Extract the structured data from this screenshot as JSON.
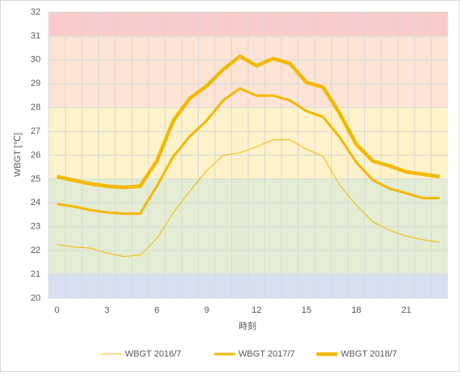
{
  "chart_data": {
    "type": "line",
    "y_label": "WBGT [℃]",
    "x_label": "時刻",
    "x": [
      0,
      1,
      2,
      3,
      4,
      5,
      6,
      7,
      8,
      9,
      10,
      11,
      12,
      13,
      14,
      15,
      16,
      17,
      18,
      19,
      20,
      21,
      22,
      23
    ],
    "xlim": [
      -0.5,
      23.5
    ],
    "xticks": [
      0,
      3,
      6,
      9,
      12,
      15,
      18,
      21
    ],
    "ylim": [
      20,
      32
    ],
    "yticks": [
      20,
      21,
      22,
      23,
      24,
      25,
      26,
      27,
      28,
      29,
      30,
      31,
      32
    ],
    "grid": true,
    "legend": "bottom",
    "bands": [
      {
        "from": 20,
        "to": 21,
        "color": "#d7e0f1"
      },
      {
        "from": 21,
        "to": 25,
        "color": "#e3edd3"
      },
      {
        "from": 25,
        "to": 28,
        "color": "#fdf2c9"
      },
      {
        "from": 28,
        "to": 31,
        "color": "#fbe4d4"
      },
      {
        "from": 31,
        "to": 32,
        "color": "#f9cbcb"
      }
    ],
    "series": [
      {
        "name": "WBGT 2016/7",
        "color": "#f4b800",
        "width": 1,
        "values": [
          22.25,
          22.15,
          22.1,
          21.9,
          21.75,
          21.8,
          22.5,
          23.6,
          24.5,
          25.35,
          26.0,
          26.1,
          26.35,
          26.65,
          26.65,
          26.25,
          25.95,
          24.75,
          23.9,
          23.2,
          22.85,
          22.6,
          22.45,
          22.35
        ]
      },
      {
        "name": "WBGT 2017/7",
        "color": "#f4b800",
        "width": 3,
        "values": [
          23.95,
          23.85,
          23.7,
          23.6,
          23.55,
          23.55,
          24.7,
          25.95,
          26.8,
          27.45,
          28.3,
          28.8,
          28.5,
          28.5,
          28.3,
          27.85,
          27.6,
          26.75,
          25.7,
          24.95,
          24.6,
          24.4,
          24.2,
          24.2
        ]
      },
      {
        "name": "WBGT 2018/7",
        "color": "#f4b800",
        "width": 4.5,
        "values": [
          25.1,
          24.95,
          24.8,
          24.7,
          24.65,
          24.7,
          25.75,
          27.45,
          28.4,
          28.9,
          29.6,
          30.15,
          29.75,
          30.05,
          29.85,
          29.05,
          28.85,
          27.75,
          26.45,
          25.75,
          25.55,
          25.3,
          25.2,
          25.1
        ]
      }
    ]
  }
}
